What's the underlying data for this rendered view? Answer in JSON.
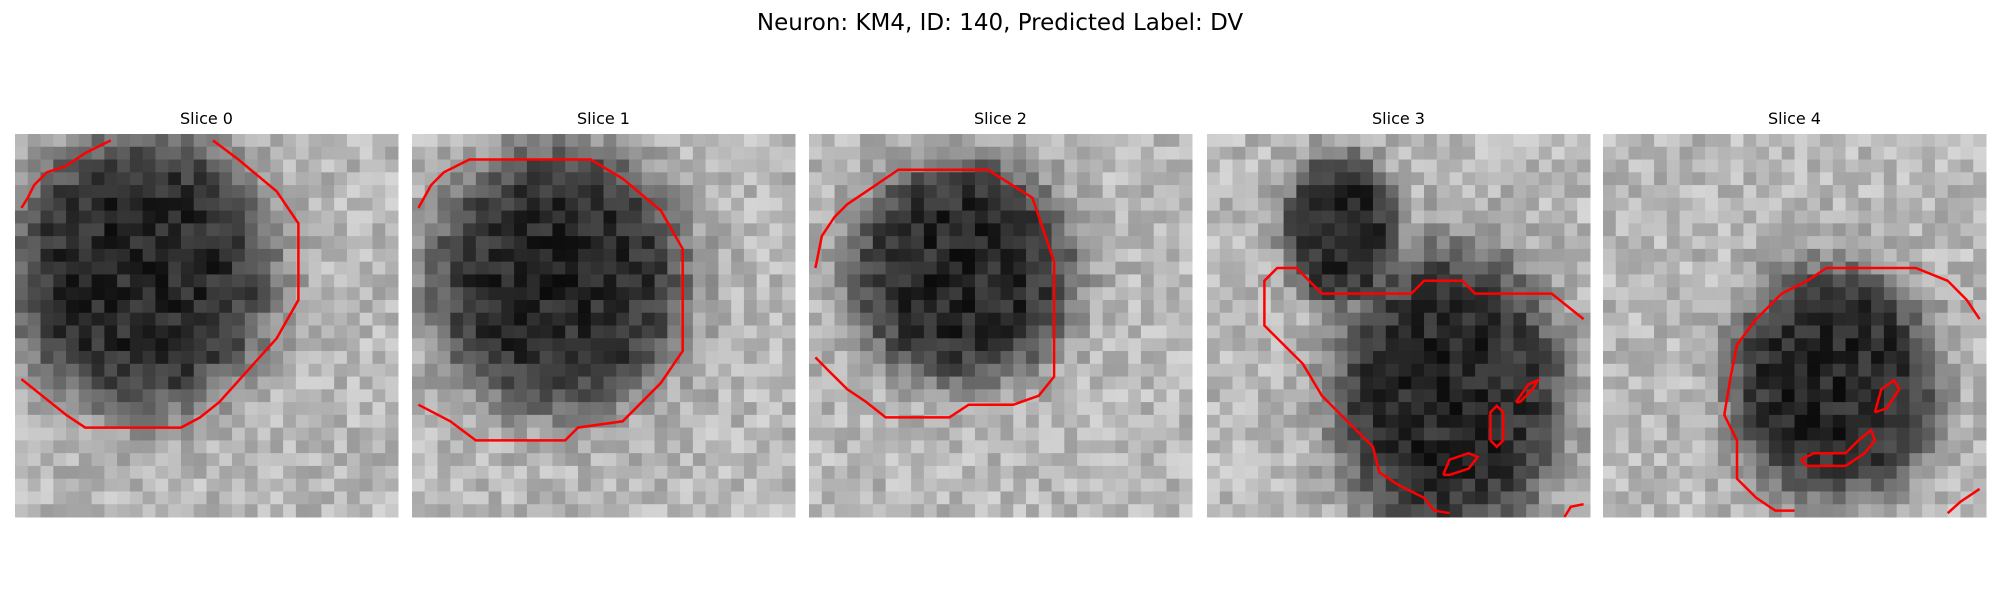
{
  "figure": {
    "title": "Neuron: KM4, ID: 140, Predicted Label: DV",
    "panels": [
      {
        "title": "Slice 0"
      },
      {
        "title": "Slice 1"
      },
      {
        "title": "Slice 2"
      },
      {
        "title": "Slice 3"
      },
      {
        "title": "Slice 4"
      }
    ]
  }
}
